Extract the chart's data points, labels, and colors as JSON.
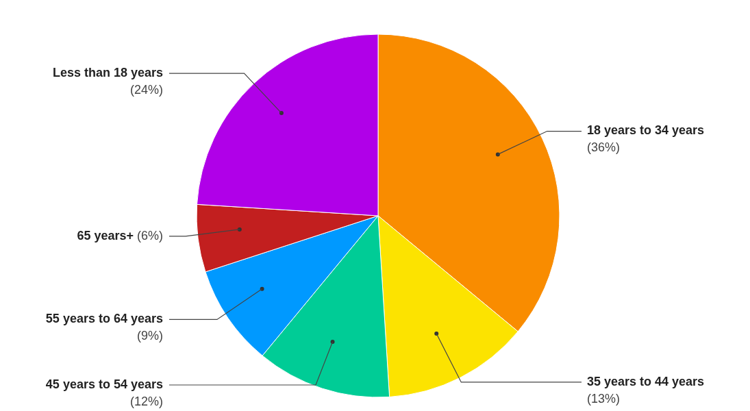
{
  "chart_data": {
    "type": "pie",
    "categories": [
      "18 years to 34 years",
      "35 years to 44 years",
      "45 years to 54 years",
      "55 years to 64 years",
      "65 years+",
      "Less than 18 years"
    ],
    "values": [
      36,
      13,
      12,
      9,
      6,
      24
    ],
    "colors": [
      "#f98c00",
      "#fce300",
      "#00cc96",
      "#0099ff",
      "#c21f1f",
      "#b000e8"
    ],
    "value_labels": [
      "(36%)",
      "(13%)",
      "(12%)",
      "(9%)",
      "(6%)",
      "(24%)"
    ]
  }
}
